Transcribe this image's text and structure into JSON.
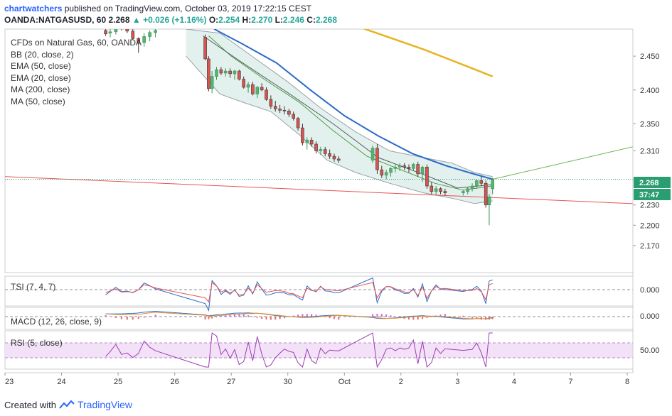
{
  "header": {
    "author": "chartwatchers",
    "published_text": "published on TradingView.com, October 03, 2019 17:22:15 CEST",
    "symbol": "OANDA:NATGASUSD, 60",
    "last": "2.268",
    "change": "+0.026 (+1.16%)",
    "open_label": "O:",
    "open": "2.254",
    "high_label": "H:",
    "high": "2.270",
    "low_label": "L:",
    "low": "2.246",
    "close_label": "C:",
    "close": "2.268"
  },
  "legend": {
    "title": "CFDs on Natural Gas, 60, OANDA",
    "items": [
      "BB (20, close, 2)",
      "EMA (50, close)",
      "EMA (20, close)",
      "MA (200, close)",
      "MA (50, close)"
    ]
  },
  "badges": {
    "price": "2.268",
    "countdown": "37:47"
  },
  "indicators": {
    "tsi": {
      "label": "TSI (7, 4, 7)",
      "value": "0.000"
    },
    "macd": {
      "label": "MACD (12, 26, close, 9)",
      "value": "0.000"
    },
    "rsi": {
      "label": "RSI (5, close)",
      "value": "50.00"
    }
  },
  "footer": {
    "created": "Created with",
    "brand": "TradingView"
  },
  "colors": {
    "up": "#26a69a",
    "down": "#ef5350",
    "ema50": "#2b6bc8",
    "ema20": "#4c9a3f",
    "ma200": "#e8b321",
    "trend_red": "#e85353",
    "trend_green": "#6fb455",
    "bb_fill": "#e3f1ee",
    "rsi_fill": "#f3e2f7",
    "rsi_line": "#9c3bb5"
  },
  "chart_data": {
    "type": "candlestick",
    "title": "CFDs on Natural Gas, 60, OANDA",
    "y_ticks": [
      "2.450",
      "2.400",
      "2.350",
      "2.310",
      "2.230",
      "2.200",
      "2.170"
    ],
    "y_tick_values": [
      2.45,
      2.4,
      2.35,
      2.31,
      2.23,
      2.2,
      2.17
    ],
    "ylim": [
      2.13,
      2.49
    ],
    "x_ticks": [
      "23",
      "24",
      "25",
      "26",
      "27",
      "30",
      "Oct",
      "2",
      "3",
      "4",
      "7",
      "8"
    ],
    "xlim": [
      0,
      11.1
    ],
    "x_tick_positions": [
      0,
      1,
      2,
      3,
      4,
      5,
      6,
      7,
      8,
      9,
      10,
      11
    ],
    "ohlc": [
      [
        1.78,
        2.488,
        2.492,
        2.48,
        2.483
      ],
      [
        1.86,
        2.484,
        2.49,
        2.478,
        2.486
      ],
      [
        1.96,
        2.486,
        2.5,
        2.482,
        2.495
      ],
      [
        2.06,
        2.495,
        2.505,
        2.488,
        2.492
      ],
      [
        2.16,
        2.492,
        2.498,
        2.484,
        2.487
      ],
      [
        2.26,
        2.487,
        2.492,
        2.474,
        2.476
      ],
      [
        2.36,
        2.476,
        2.478,
        2.455,
        2.47
      ],
      [
        2.46,
        2.47,
        2.484,
        2.464,
        2.479
      ],
      [
        2.56,
        2.479,
        2.488,
        2.472,
        2.485
      ],
      [
        2.66,
        2.485,
        2.492,
        2.478,
        2.488
      ],
      [
        3.54,
        2.478,
        2.482,
        2.444,
        2.446
      ],
      [
        3.6,
        2.446,
        2.45,
        2.398,
        2.402
      ],
      [
        3.66,
        2.402,
        2.428,
        2.395,
        2.42
      ],
      [
        3.74,
        2.42,
        2.434,
        2.415,
        2.43
      ],
      [
        3.82,
        2.43,
        2.434,
        2.422,
        2.425
      ],
      [
        3.9,
        2.425,
        2.432,
        2.42,
        2.428
      ],
      [
        3.98,
        2.428,
        2.432,
        2.418,
        2.424
      ],
      [
        4.06,
        2.424,
        2.43,
        2.415,
        2.428
      ],
      [
        4.14,
        2.428,
        2.43,
        2.414,
        2.416
      ],
      [
        4.22,
        2.416,
        2.42,
        2.402,
        2.404
      ],
      [
        4.3,
        2.404,
        2.412,
        2.396,
        2.408
      ],
      [
        4.38,
        2.408,
        2.412,
        2.392,
        2.394
      ],
      [
        4.46,
        2.394,
        2.406,
        2.388,
        2.404
      ],
      [
        4.54,
        2.404,
        2.41,
        2.398,
        2.4
      ],
      [
        4.62,
        2.4,
        2.404,
        2.384,
        2.386
      ],
      [
        4.7,
        2.386,
        2.392,
        2.372,
        2.376
      ],
      [
        4.78,
        2.376,
        2.384,
        2.368,
        2.372
      ],
      [
        4.86,
        2.372,
        2.378,
        2.366,
        2.37
      ],
      [
        4.94,
        2.37,
        2.376,
        2.364,
        2.369
      ],
      [
        5.02,
        2.369,
        2.372,
        2.36,
        2.364
      ],
      [
        5.1,
        2.364,
        2.368,
        2.355,
        2.358
      ],
      [
        5.18,
        2.358,
        2.36,
        2.34,
        2.344
      ],
      [
        5.26,
        2.344,
        2.35,
        2.318,
        2.322
      ],
      [
        5.34,
        2.322,
        2.33,
        2.312,
        2.326
      ],
      [
        5.42,
        2.326,
        2.33,
        2.316,
        2.32
      ],
      [
        5.5,
        2.32,
        2.324,
        2.306,
        2.31
      ],
      [
        5.58,
        2.31,
        2.316,
        2.304,
        2.312
      ],
      [
        5.66,
        2.312,
        2.316,
        2.302,
        2.306
      ],
      [
        5.74,
        2.306,
        2.312,
        2.298,
        2.302
      ],
      [
        5.82,
        2.302,
        2.306,
        2.294,
        2.298
      ],
      [
        5.9,
        2.298,
        2.302,
        2.292,
        2.296
      ],
      [
        6.5,
        2.296,
        2.318,
        2.292,
        2.314
      ],
      [
        6.58,
        2.314,
        2.32,
        2.276,
        2.282
      ],
      [
        6.66,
        2.282,
        2.288,
        2.27,
        2.274
      ],
      [
        6.74,
        2.274,
        2.282,
        2.268,
        2.278
      ],
      [
        6.82,
        2.278,
        2.286,
        2.272,
        2.284
      ],
      [
        6.9,
        2.284,
        2.29,
        2.278,
        2.286
      ],
      [
        6.98,
        2.286,
        2.292,
        2.28,
        2.288
      ],
      [
        7.06,
        2.288,
        2.292,
        2.282,
        2.286
      ],
      [
        7.14,
        2.286,
        2.29,
        2.278,
        2.284
      ],
      [
        7.22,
        2.284,
        2.292,
        2.28,
        2.29
      ],
      [
        7.3,
        2.29,
        2.294,
        2.272,
        2.276
      ],
      [
        7.38,
        2.276,
        2.288,
        2.264,
        2.286
      ],
      [
        7.46,
        2.286,
        2.29,
        2.254,
        2.258
      ],
      [
        7.54,
        2.258,
        2.264,
        2.246,
        2.25
      ],
      [
        7.62,
        2.25,
        2.258,
        2.244,
        2.254
      ],
      [
        7.7,
        2.254,
        2.256,
        2.246,
        2.25
      ],
      [
        7.78,
        2.25,
        2.254,
        2.244,
        2.248
      ],
      [
        8.1,
        2.248,
        2.252,
        2.244,
        2.25
      ],
      [
        8.18,
        2.25,
        2.256,
        2.246,
        2.254
      ],
      [
        8.26,
        2.254,
        2.262,
        2.25,
        2.258
      ],
      [
        8.34,
        2.258,
        2.268,
        2.254,
        2.266
      ],
      [
        8.42,
        2.266,
        2.272,
        2.258,
        2.262
      ],
      [
        8.5,
        2.262,
        2.266,
        2.226,
        2.23
      ],
      [
        8.56,
        2.23,
        2.246,
        2.2,
        2.242
      ],
      [
        8.62,
        2.254,
        2.27,
        2.246,
        2.268
      ]
    ],
    "ema50": [
      [
        3.7,
        2.49
      ],
      [
        4.2,
        2.468
      ],
      [
        4.8,
        2.44
      ],
      [
        5.4,
        2.4
      ],
      [
        6.0,
        2.362
      ],
      [
        6.6,
        2.332
      ],
      [
        7.2,
        2.306
      ],
      [
        7.8,
        2.288
      ],
      [
        8.2,
        2.278
      ],
      [
        8.62,
        2.268
      ]
    ],
    "ema20": [
      [
        3.6,
        2.48
      ],
      [
        4.0,
        2.45
      ],
      [
        4.6,
        2.415
      ],
      [
        5.2,
        2.382
      ],
      [
        5.8,
        2.34
      ],
      [
        6.4,
        2.302
      ],
      [
        7.0,
        2.282
      ],
      [
        7.6,
        2.262
      ],
      [
        8.1,
        2.252
      ],
      [
        8.62,
        2.258
      ]
    ],
    "ma200": [
      [
        6.3,
        2.492
      ],
      [
        7.4,
        2.46
      ],
      [
        8.2,
        2.434
      ],
      [
        8.62,
        2.42
      ]
    ],
    "bb_upper": [
      [
        3.2,
        2.49
      ],
      [
        3.8,
        2.484
      ],
      [
        4.4,
        2.448
      ],
      [
        5.0,
        2.412
      ],
      [
        5.6,
        2.372
      ],
      [
        6.2,
        2.338
      ],
      [
        6.8,
        2.31
      ],
      [
        7.4,
        2.3
      ],
      [
        7.9,
        2.292
      ],
      [
        8.3,
        2.278
      ],
      [
        8.62,
        2.272
      ]
    ],
    "bb_lower": [
      [
        3.2,
        2.45
      ],
      [
        3.8,
        2.394
      ],
      [
        4.2,
        2.382
      ],
      [
        4.7,
        2.368
      ],
      [
        5.2,
        2.334
      ],
      [
        5.7,
        2.296
      ],
      [
        6.2,
        2.278
      ],
      [
        6.8,
        2.262
      ],
      [
        7.4,
        2.248
      ],
      [
        7.9,
        2.24
      ],
      [
        8.3,
        2.232
      ],
      [
        8.62,
        2.236
      ]
    ],
    "ma50": [
      [
        3.5,
        2.48
      ],
      [
        4.2,
        2.44
      ],
      [
        5.0,
        2.396
      ],
      [
        5.8,
        2.35
      ],
      [
        6.6,
        2.3
      ],
      [
        7.4,
        2.275
      ],
      [
        8.0,
        2.255
      ],
      [
        8.62,
        2.26
      ]
    ],
    "trend_red": [
      [
        0,
        2.272
      ],
      [
        11.1,
        2.232
      ]
    ],
    "trend_green": [
      [
        8.62,
        2.268
      ],
      [
        11.1,
        2.316
      ]
    ],
    "last_price_line": 2.268,
    "tsi_zero": 0.0,
    "macd_zero": 0.0,
    "rsi_mid": 50.0,
    "rsi_band": [
      30,
      70
    ]
  }
}
